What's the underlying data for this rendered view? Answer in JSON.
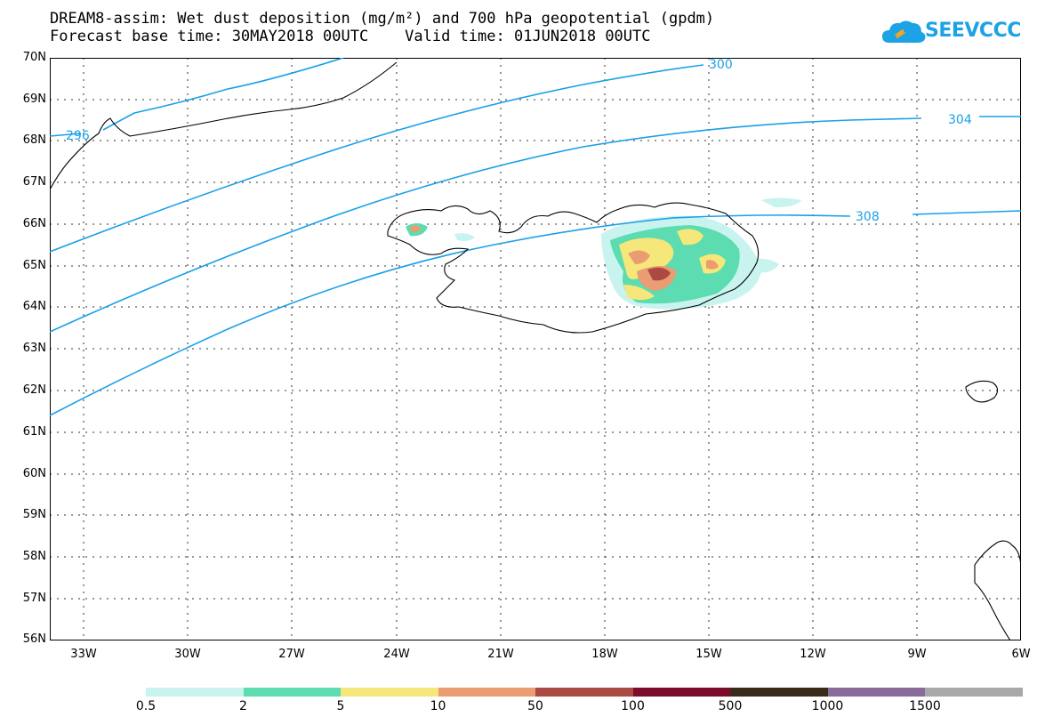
{
  "header": {
    "title_line1": "DREAM8-assim: Wet dust deposition (mg/m²) and 700 hPa geopotential (gpdm)",
    "title_line2": "Forecast base time: 30MAY2018 00UTC    Valid time: 01JUN2018 00UTC",
    "logo_text": "SEEVCCC"
  },
  "map": {
    "lat_labels": [
      "70N",
      "69N",
      "68N",
      "67N",
      "66N",
      "65N",
      "64N",
      "63N",
      "62N",
      "61N",
      "60N",
      "59N",
      "58N",
      "57N",
      "56N"
    ],
    "lon_labels": [
      "33W",
      "30W",
      "27W",
      "24W",
      "21W",
      "18W",
      "15W",
      "12W",
      "9W",
      "6W"
    ],
    "contour_labels": [
      "296",
      "300",
      "304",
      "308"
    ],
    "contour_color": "#1aa0e8",
    "coast_color": "#000000"
  },
  "colorbar": {
    "colors": [
      "#c8f3ee",
      "#5cdcb0",
      "#f6e77a",
      "#ec9c72",
      "#aa4a42",
      "#7c0c2c",
      "#3a2a1a",
      "#8a6a9a",
      "#a8a8a8"
    ],
    "labels": [
      "0.5",
      "2",
      "5",
      "10",
      "50",
      "100",
      "500",
      "1000",
      "1500"
    ]
  }
}
